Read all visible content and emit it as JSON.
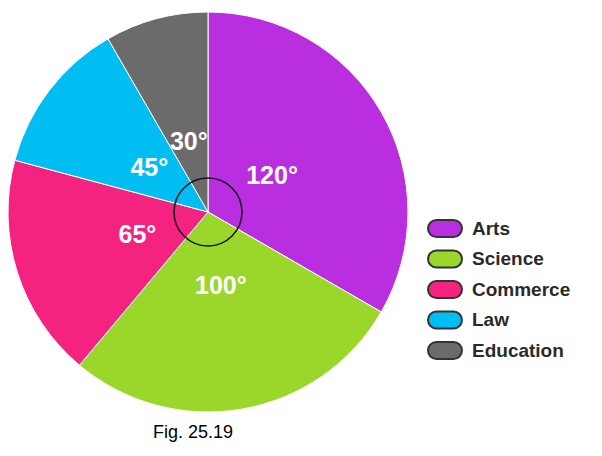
{
  "chart_data": {
    "type": "pie",
    "categories": [
      "Arts",
      "Science",
      "Commerce",
      "Law",
      "Education"
    ],
    "values": [
      120,
      100,
      65,
      45,
      30
    ],
    "value_labels": [
      "120°",
      "100°",
      "65°",
      "45°",
      "30°"
    ],
    "colors": [
      "#b92fe0",
      "#9bd62b",
      "#f4237f",
      "#00bef2",
      "#6b6b6b"
    ],
    "data_labels": true,
    "legend": "right",
    "caption": "Fig. 25.19"
  }
}
